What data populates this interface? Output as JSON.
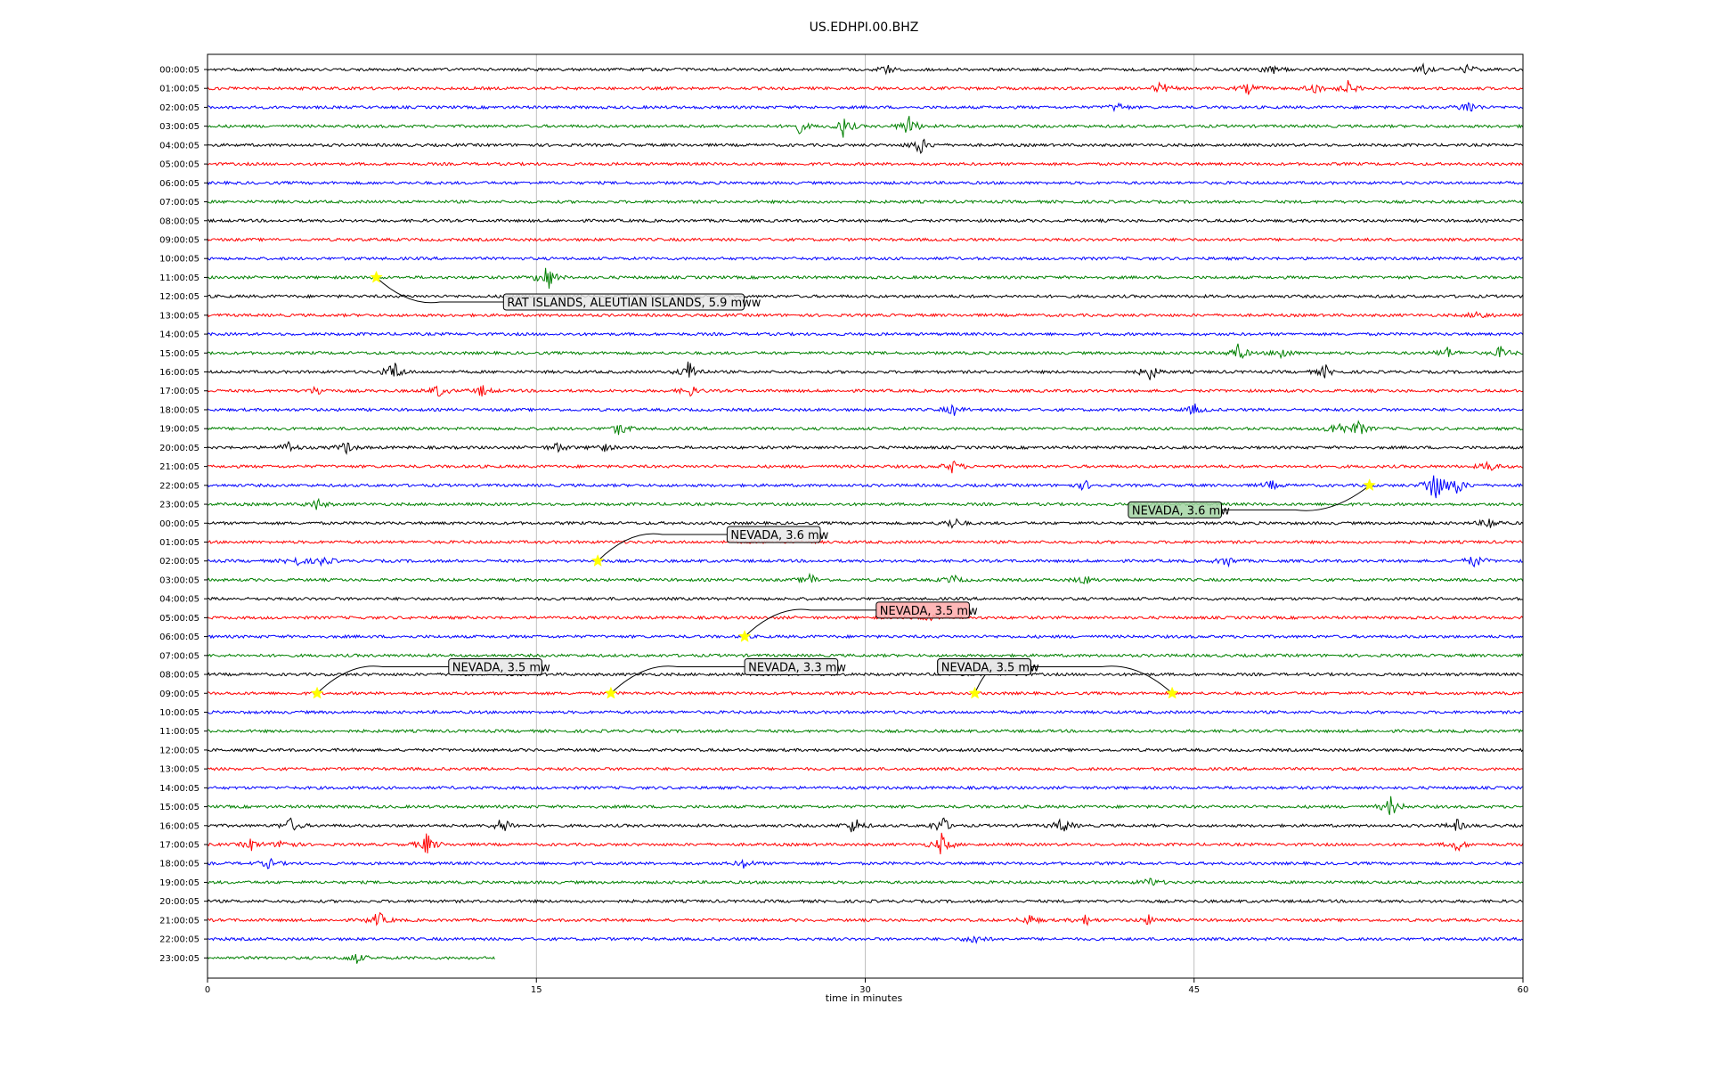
{
  "chart_data": {
    "type": "line",
    "title": "US.EDHPI.00.BHZ",
    "xlabel": "time in minutes",
    "ylabel": "",
    "xlim": [
      0,
      60
    ],
    "x_ticks": [
      "0",
      "15",
      "30",
      "45",
      "60"
    ],
    "grid": "vertical",
    "trace_colors": [
      "#000000",
      "#ff0000",
      "#0000ff",
      "#008000"
    ],
    "y_labels": [
      "00:00:05",
      "01:00:05",
      "02:00:05",
      "03:00:05",
      "04:00:05",
      "05:00:05",
      "06:00:05",
      "07:00:05",
      "08:00:05",
      "09:00:05",
      "10:00:05",
      "11:00:05",
      "12:00:05",
      "13:00:05",
      "14:00:05",
      "15:00:05",
      "16:00:05",
      "17:00:05",
      "18:00:05",
      "19:00:05",
      "20:00:05",
      "21:00:05",
      "22:00:05",
      "23:00:05",
      "00:00:05",
      "01:00:05",
      "02:00:05",
      "03:00:05",
      "04:00:05",
      "05:00:05",
      "06:00:05",
      "07:00:05",
      "08:00:05",
      "09:00:05",
      "10:00:05",
      "11:00:05",
      "12:00:05",
      "13:00:05",
      "14:00:05",
      "15:00:05",
      "16:00:05",
      "17:00:05",
      "18:00:05",
      "19:00:05",
      "20:00:05",
      "21:00:05",
      "22:00:05",
      "23:00:05"
    ],
    "last_trace_end_minute": 13.1,
    "bursts": [
      {
        "row": 0,
        "minute": 31,
        "amp": 0.6
      },
      {
        "row": 0,
        "minute": 48.5,
        "amp": 0.7
      },
      {
        "row": 0,
        "minute": 55.5,
        "amp": 0.6
      },
      {
        "row": 0,
        "minute": 57.5,
        "amp": 0.6
      },
      {
        "row": 1,
        "minute": 43.5,
        "amp": 0.9
      },
      {
        "row": 1,
        "minute": 47.5,
        "amp": 0.7
      },
      {
        "row": 1,
        "minute": 50.5,
        "amp": 0.8
      },
      {
        "row": 1,
        "minute": 52,
        "amp": 0.9
      },
      {
        "row": 2,
        "minute": 41.5,
        "amp": 0.6
      },
      {
        "row": 2,
        "minute": 57.5,
        "amp": 1.0
      },
      {
        "row": 3,
        "minute": 27,
        "amp": 0.8
      },
      {
        "row": 3,
        "minute": 29,
        "amp": 1.3
      },
      {
        "row": 3,
        "minute": 32,
        "amp": 1.4
      },
      {
        "row": 4,
        "minute": 32.5,
        "amp": 1.2
      },
      {
        "row": 11,
        "minute": 15.5,
        "amp": 1.8
      },
      {
        "row": 13,
        "minute": 58,
        "amp": 0.7
      },
      {
        "row": 15,
        "minute": 47,
        "amp": 1.2
      },
      {
        "row": 15,
        "minute": 49,
        "amp": 0.8
      },
      {
        "row": 15,
        "minute": 56.5,
        "amp": 0.8
      },
      {
        "row": 15,
        "minute": 59,
        "amp": 0.8
      },
      {
        "row": 16,
        "minute": 8.5,
        "amp": 1.4
      },
      {
        "row": 16,
        "minute": 22,
        "amp": 1.6
      },
      {
        "row": 16,
        "minute": 43,
        "amp": 1.1
      },
      {
        "row": 16,
        "minute": 51,
        "amp": 0.8
      },
      {
        "row": 17,
        "minute": 5,
        "amp": 0.6
      },
      {
        "row": 17,
        "minute": 10.5,
        "amp": 0.8
      },
      {
        "row": 17,
        "minute": 12.5,
        "amp": 0.7
      },
      {
        "row": 17,
        "minute": 22,
        "amp": 0.7
      },
      {
        "row": 18,
        "minute": 34,
        "amp": 0.7
      },
      {
        "row": 18,
        "minute": 45,
        "amp": 0.7
      },
      {
        "row": 19,
        "minute": 18.8,
        "amp": 0.9
      },
      {
        "row": 19,
        "minute": 51.5,
        "amp": 1.1
      },
      {
        "row": 19,
        "minute": 52.5,
        "amp": 1.0
      },
      {
        "row": 20,
        "minute": 3.7,
        "amp": 0.7
      },
      {
        "row": 20,
        "minute": 6.3,
        "amp": 0.8
      },
      {
        "row": 20,
        "minute": 16,
        "amp": 0.6
      },
      {
        "row": 20,
        "minute": 18,
        "amp": 0.6
      },
      {
        "row": 21,
        "minute": 34,
        "amp": 0.8
      },
      {
        "row": 21,
        "minute": 58.5,
        "amp": 0.8
      },
      {
        "row": 22,
        "minute": 56,
        "amp": 3.0
      },
      {
        "row": 22,
        "minute": 57,
        "amp": 1.2
      },
      {
        "row": 22,
        "minute": 40,
        "amp": 0.6
      },
      {
        "row": 22,
        "minute": 48.5,
        "amp": 0.6
      },
      {
        "row": 23,
        "minute": 5,
        "amp": 0.7
      },
      {
        "row": 24,
        "minute": 34,
        "amp": 0.8
      },
      {
        "row": 24,
        "minute": 58.5,
        "amp": 0.8
      },
      {
        "row": 26,
        "minute": 4,
        "amp": 0.7
      },
      {
        "row": 26,
        "minute": 5.3,
        "amp": 0.7
      },
      {
        "row": 26,
        "minute": 46.5,
        "amp": 0.7
      },
      {
        "row": 26,
        "minute": 57.8,
        "amp": 0.9
      },
      {
        "row": 27,
        "minute": 27.5,
        "amp": 0.8
      },
      {
        "row": 27,
        "minute": 34,
        "amp": 0.6
      },
      {
        "row": 27,
        "minute": 40,
        "amp": 0.6
      },
      {
        "row": 29,
        "minute": 33,
        "amp": 0.5
      },
      {
        "row": 39,
        "minute": 54,
        "amp": 1.3
      },
      {
        "row": 40,
        "minute": 3.8,
        "amp": 0.9
      },
      {
        "row": 40,
        "minute": 13.5,
        "amp": 1.2
      },
      {
        "row": 40,
        "minute": 29.5,
        "amp": 1.1
      },
      {
        "row": 40,
        "minute": 33.5,
        "amp": 1.3
      },
      {
        "row": 40,
        "minute": 39,
        "amp": 1.0
      },
      {
        "row": 40,
        "minute": 57,
        "amp": 0.7
      },
      {
        "row": 41,
        "minute": 2,
        "amp": 0.7
      },
      {
        "row": 41,
        "minute": 3.5,
        "amp": 0.8
      },
      {
        "row": 41,
        "minute": 10,
        "amp": 1.4
      },
      {
        "row": 41,
        "minute": 33.5,
        "amp": 1.4
      },
      {
        "row": 41,
        "minute": 57,
        "amp": 0.8
      },
      {
        "row": 42,
        "minute": 2.8,
        "amp": 0.6
      },
      {
        "row": 42,
        "minute": 24.5,
        "amp": 0.6
      },
      {
        "row": 43,
        "minute": 43,
        "amp": 0.6
      },
      {
        "row": 45,
        "minute": 7.8,
        "amp": 1.0
      },
      {
        "row": 45,
        "minute": 37.5,
        "amp": 0.7
      },
      {
        "row": 45,
        "minute": 40,
        "amp": 0.7
      },
      {
        "row": 45,
        "minute": 43,
        "amp": 0.7
      },
      {
        "row": 46,
        "minute": 35,
        "amp": 0.7
      },
      {
        "row": 47,
        "minute": 6.8,
        "amp": 0.7
      }
    ],
    "events": [
      {
        "row": 11,
        "minute": 7.7,
        "label": "RAT ISLANDS, ALEUTIAN ISLANDS, 5.9 mww",
        "box_color": "#e6e6e6",
        "label_minute": 13.5,
        "label_row": 12.3
      },
      {
        "row": 22,
        "minute": 53.0,
        "label": "NEVADA, 3.6 mw",
        "box_color": "#a3d3a3",
        "label_minute": 42.0,
        "label_row": 23.3
      },
      {
        "row": 26,
        "minute": 17.8,
        "label": "NEVADA, 3.6 mw",
        "box_color": "#e6e6e6",
        "label_minute": 23.7,
        "label_row": 24.6
      },
      {
        "row": 30,
        "minute": 24.5,
        "label": "NEVADA, 3.5 mw",
        "box_color": "#ffaaaa",
        "label_minute": 30.5,
        "label_row": 28.6
      },
      {
        "row": 33,
        "minute": 5.0,
        "label": "NEVADA, 3.5 mw",
        "box_color": "#e6e6e6",
        "label_minute": 11.0,
        "label_row": 31.6
      },
      {
        "row": 33,
        "minute": 18.4,
        "label": "NEVADA, 3.3 mw",
        "box_color": "#e6e6e6",
        "label_minute": 24.5,
        "label_row": 31.6
      },
      {
        "row": 33,
        "minute": 35.0,
        "label": "NEVADA, 3.5 mw",
        "box_color": "#e6e6e6",
        "label_minute": 33.3,
        "label_row": 31.6
      },
      {
        "row": 33,
        "minute": 44.0,
        "label": "NEVADA, 3.5 mw",
        "box_color": "#e6e6e6",
        "label_minute": 33.3,
        "label_row": 31.6
      }
    ]
  }
}
